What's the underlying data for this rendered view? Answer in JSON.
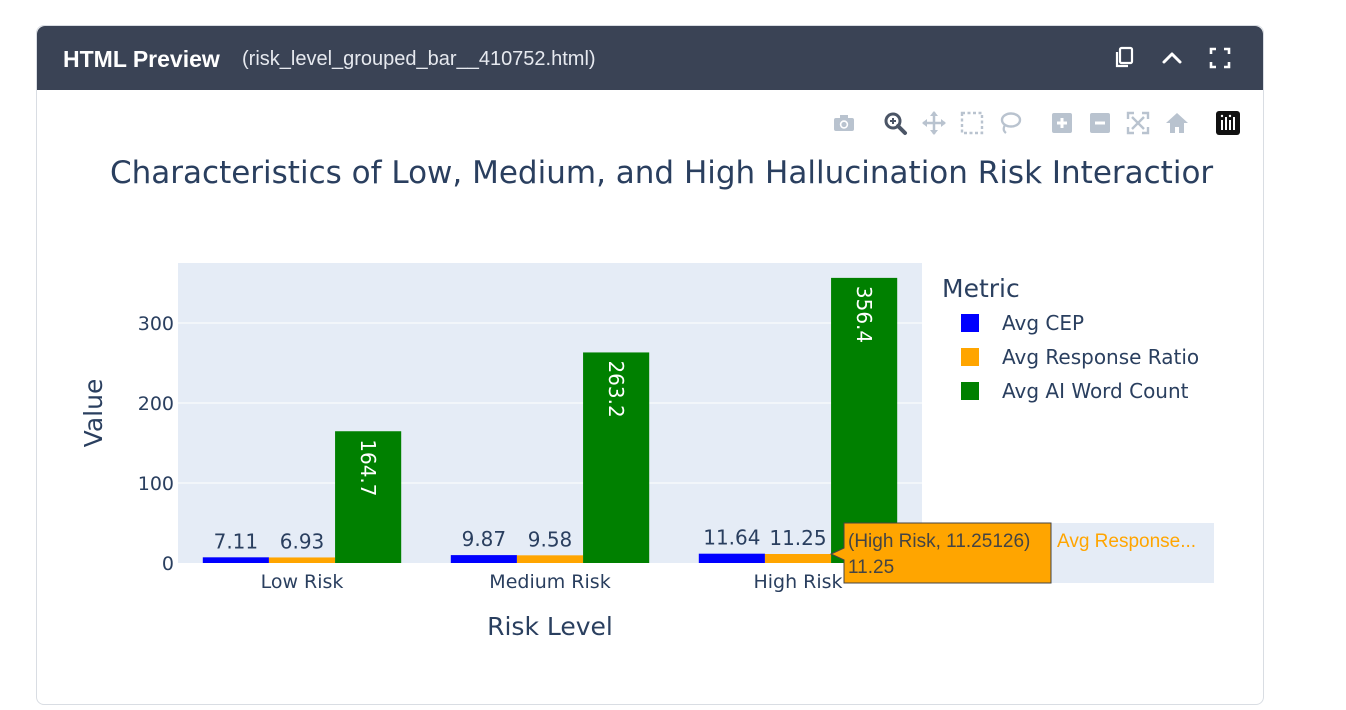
{
  "header": {
    "title": "HTML Preview",
    "filename": "(risk_level_grouped_bar__410752.html)",
    "icons": [
      "copy-icon",
      "chevron-up-icon",
      "fullscreen-icon"
    ]
  },
  "modebar": {
    "icons": [
      "camera-icon",
      "zoom-icon",
      "pan-icon",
      "box-select-icon",
      "lasso-icon",
      "zoom-in-icon",
      "zoom-out-icon",
      "autoscale-icon",
      "reset-axes-icon",
      "plotly-logo-icon"
    ]
  },
  "colors": {
    "header_bg": "#3a4355",
    "plot_bg": "#e5ecf6",
    "avg_cep": "#0000ff",
    "avg_response_ratio": "#ffa500",
    "avg_ai_word_count": "#008000"
  },
  "chart_data": {
    "type": "bar",
    "barmode": "group",
    "title": "Characteristics of Low, Medium, and High Hallucination Risk Interactior",
    "xlabel": "Risk Level",
    "ylabel": "Value",
    "categories": [
      "Low Risk",
      "Medium Risk",
      "High Risk"
    ],
    "ylim": [
      0,
      375
    ],
    "yticks": [
      0,
      100,
      200,
      300
    ],
    "grid": true,
    "legend": {
      "title": "Metric",
      "placement": "top-right"
    },
    "series": [
      {
        "name": "Avg CEP",
        "color": "#0000ff",
        "values": [
          7.11,
          9.87,
          11.64
        ],
        "labels": [
          "7.11",
          "9.87",
          "11.64"
        ],
        "label_position": "outside"
      },
      {
        "name": "Avg Response Ratio",
        "color": "#ffa500",
        "values": [
          6.93,
          9.58,
          11.25
        ],
        "labels": [
          "6.93",
          "9.58",
          "11.25"
        ],
        "label_position": "outside"
      },
      {
        "name": "Avg AI Word Count",
        "color": "#008000",
        "values": [
          164.7,
          263.2,
          356.4
        ],
        "labels": [
          "164.7",
          "263.2",
          "356.4"
        ],
        "label_position": "inside-rotated"
      }
    ],
    "hover": {
      "category": "High Risk",
      "series": "Avg Response Ratio",
      "line1": "(High Risk, 11.25126)",
      "line2": "11.25",
      "series_label": "Avg Response..."
    }
  }
}
